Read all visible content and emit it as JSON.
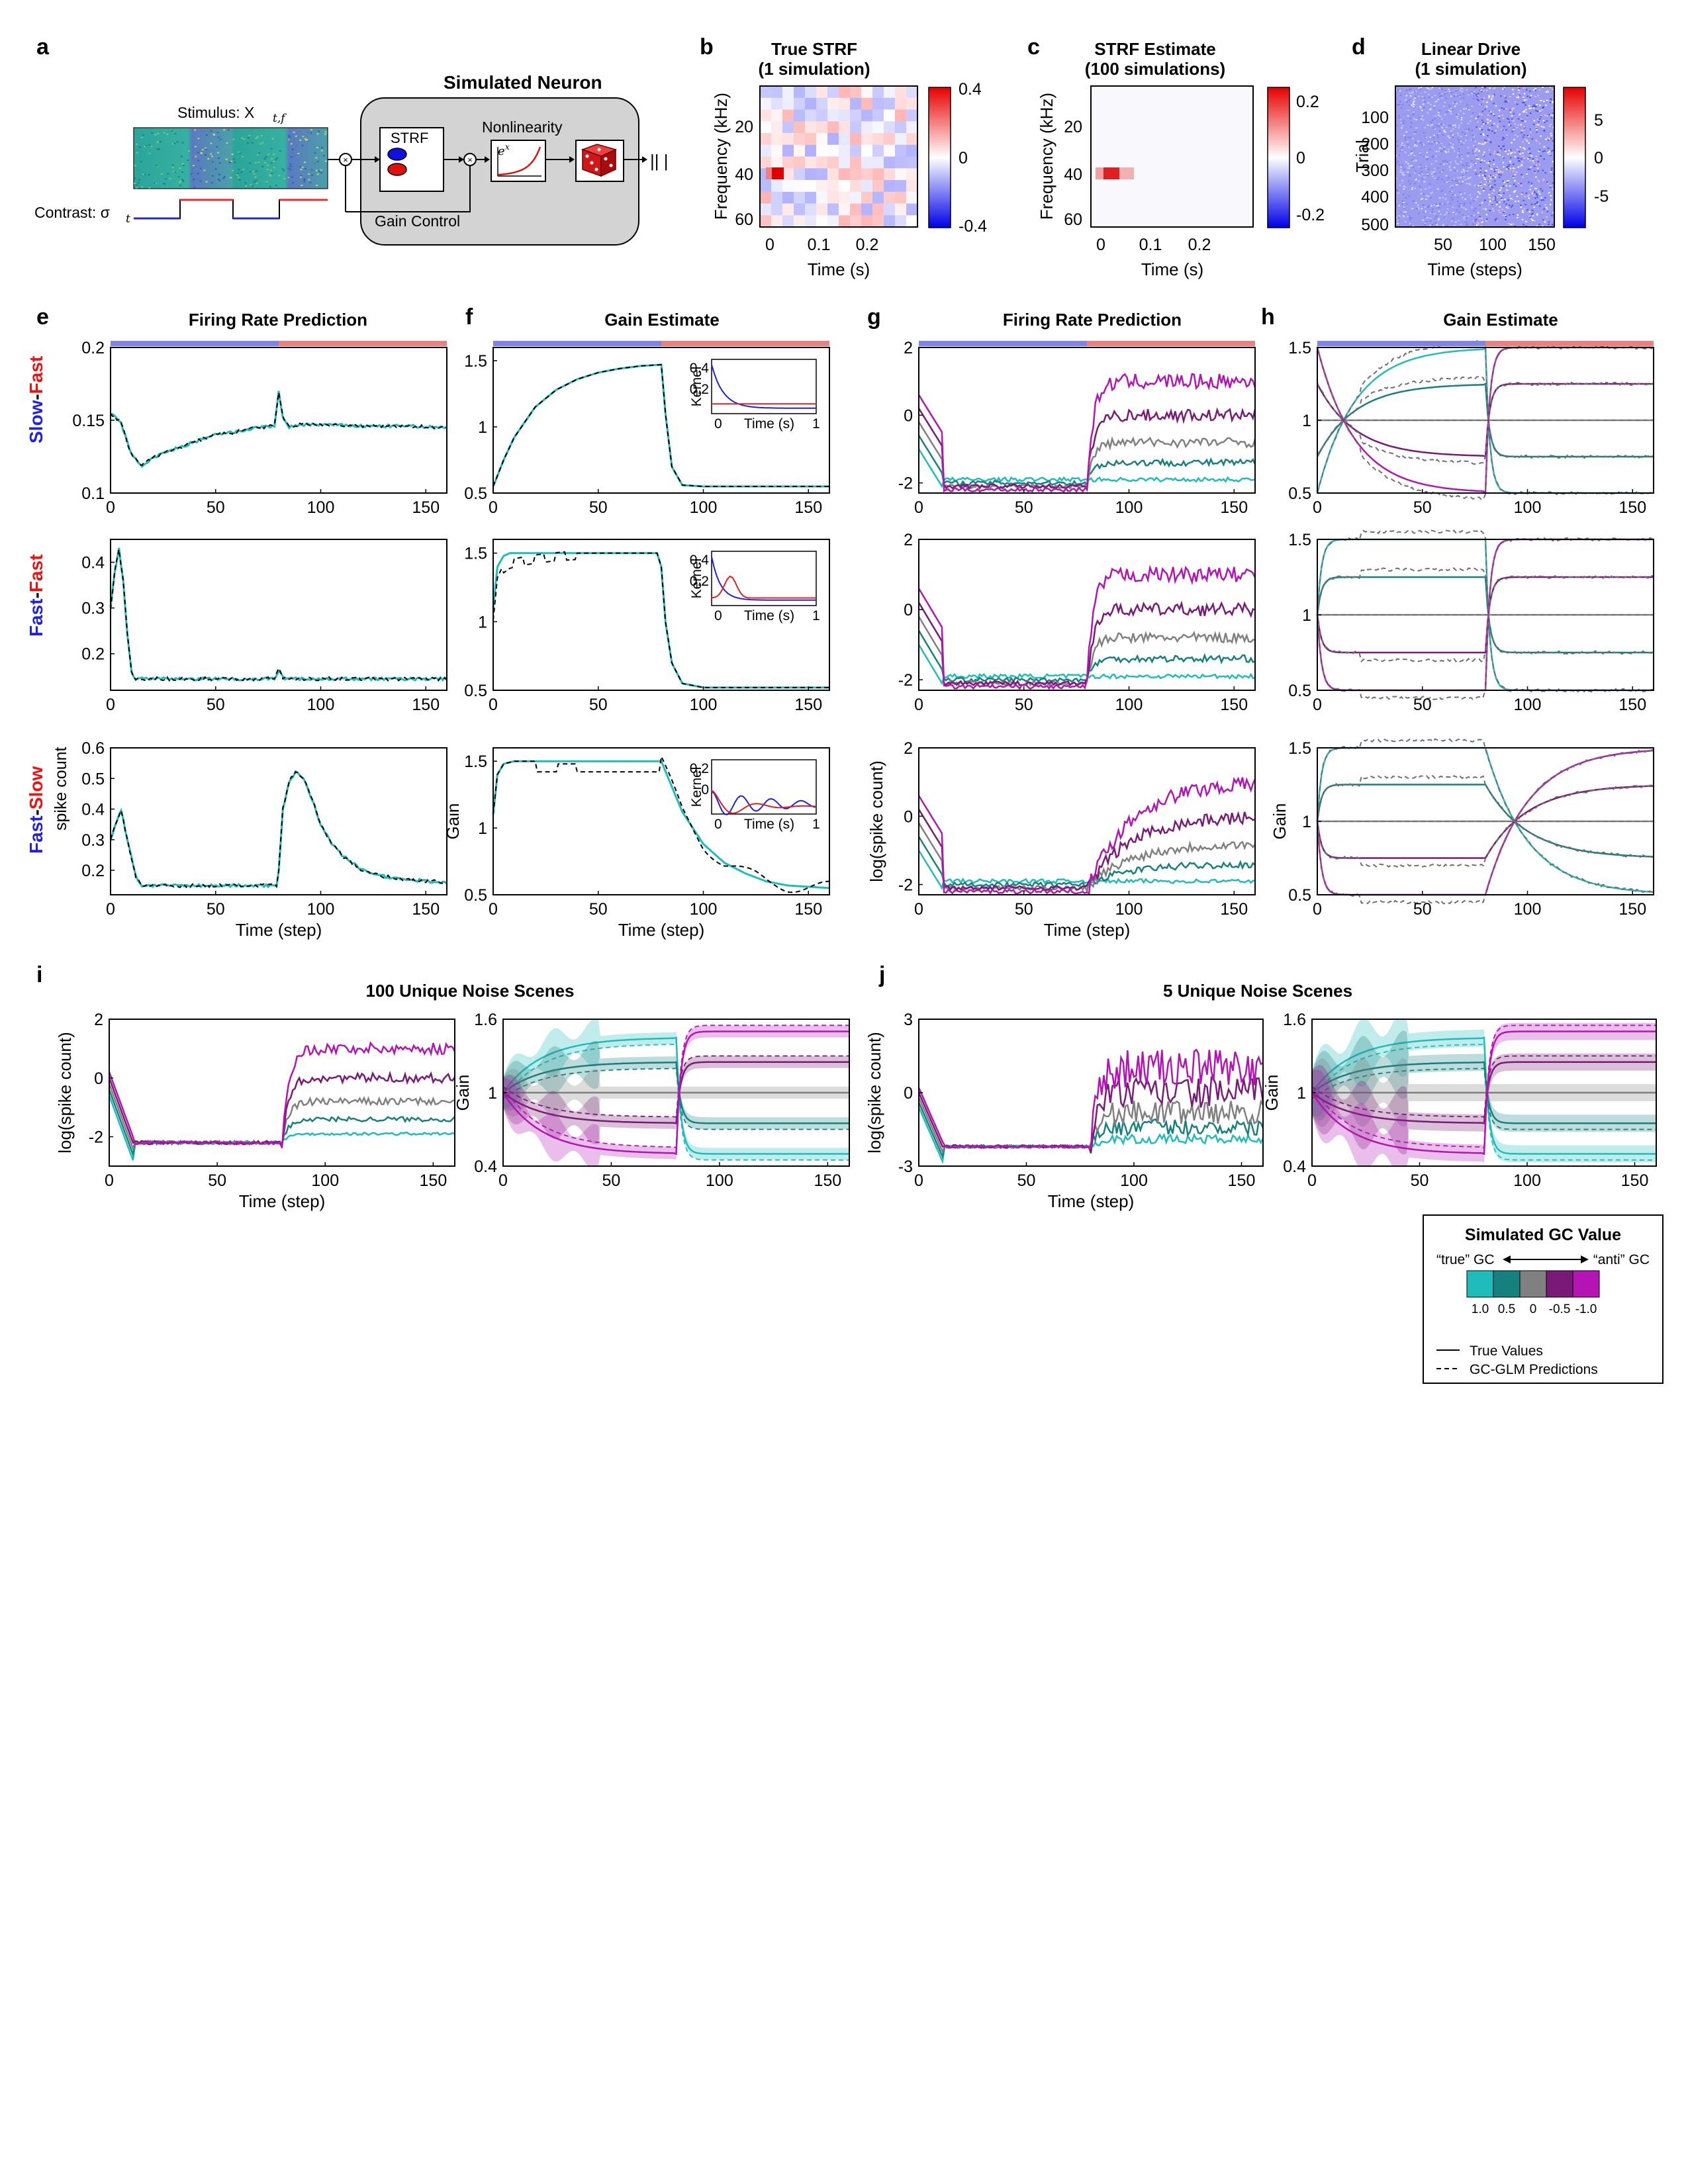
{
  "panels": {
    "a": {
      "label": "a",
      "neuron_title": "Simulated Neuron",
      "stimulus_label": "Stimulus: X",
      "stimulus_sub": "t,f",
      "contrast_label": "Contrast: σ",
      "contrast_sub": "t",
      "strf_label": "STRF",
      "nonlinearity_label": "Nonlinearity",
      "nonlinearity_formula": "e",
      "nonlinearity_sup": "x",
      "gain_control_label": "Gain Control",
      "spikes_label": "|| |"
    },
    "b": {
      "label": "b",
      "title1": "True STRF",
      "title2": "(1 simulation)",
      "ylabel": "Frequency (kHz)",
      "xlabel": "Time (s)",
      "yticks": [
        "20",
        "40",
        "60"
      ],
      "xticks": [
        "0",
        "0.1",
        "0.2"
      ],
      "cbar_ticks": [
        "0.4",
        "0",
        "-0.4"
      ]
    },
    "c": {
      "label": "c",
      "title1": "STRF Estimate",
      "title2": "(100 simulations)",
      "ylabel": "Frequency (kHz)",
      "xlabel": "Time (s)",
      "yticks": [
        "20",
        "40",
        "60"
      ],
      "xticks": [
        "0",
        "0.1",
        "0.2"
      ],
      "cbar_ticks": [
        "0.2",
        "0",
        "-0.2"
      ]
    },
    "d": {
      "label": "d",
      "title1": "Linear Drive",
      "title2": "(1 simulation)",
      "ylabel": "Trial",
      "xlabel": "Time (steps)",
      "yticks": [
        "100",
        "200",
        "300",
        "400",
        "500"
      ],
      "xticks": [
        "50",
        "100",
        "150"
      ],
      "cbar_ticks": [
        "5",
        "0",
        "-5"
      ]
    },
    "e": {
      "label": "e",
      "title": "Firing Rate Prediction",
      "ylabel": "spike count",
      "xlabel": "Time (step)",
      "rows": [
        {
          "yticks": [
            "0.2",
            "0.15",
            "0.1"
          ],
          "xticks": [
            "0",
            "50",
            "100",
            "150"
          ]
        },
        {
          "yticks": [
            "0.4",
            "0.3",
            "0.2"
          ],
          "xticks": [
            "0",
            "50",
            "100",
            "150"
          ]
        },
        {
          "yticks": [
            "0.6",
            "0.5",
            "0.4",
            "0.3",
            "0.2"
          ],
          "xticks": [
            "0",
            "50",
            "100",
            "150"
          ]
        }
      ]
    },
    "f": {
      "label": "f",
      "title": "Gain Estimate",
      "ylabel": "Gain",
      "xlabel": "Time (step)",
      "inset_ylabel": "Kernel",
      "inset_xlabel": "Time (s)",
      "yticks": [
        "1.5",
        "1",
        "0.5"
      ],
      "xticks": [
        "0",
        "50",
        "100",
        "150"
      ],
      "inset_yticks": [
        [
          "0.4",
          "0.2"
        ],
        [
          "0.4",
          "0.2"
        ],
        [
          "0.2",
          "0"
        ]
      ],
      "inset_xticks": [
        "0",
        "1"
      ]
    },
    "g": {
      "label": "g",
      "title": "Firing Rate Prediction",
      "ylabel": "log(spike count)",
      "xlabel": "Time (step)",
      "yticks": [
        "2",
        "0",
        "-2"
      ],
      "xticks": [
        "0",
        "50",
        "100",
        "150"
      ]
    },
    "h": {
      "label": "h",
      "title": "Gain Estimate",
      "ylabel": "Gain",
      "yticks": [
        "1.5",
        "1",
        "0.5"
      ],
      "xticks": [
        "0",
        "50",
        "100",
        "150"
      ]
    },
    "i": {
      "label": "i",
      "title": "100 Unique Noise Scenes",
      "ylabel": "log(spike count)",
      "xlabel": "Time (step)",
      "gain_ylabel": "Gain",
      "yticks": [
        "2",
        "0",
        "-2"
      ],
      "gain_yticks": [
        "1.6",
        "1",
        "0.4"
      ],
      "xticks": [
        "0",
        "50",
        "100",
        "150"
      ]
    },
    "j": {
      "label": "j",
      "title": "5 Unique Noise Scenes",
      "ylabel": "log(spike count)",
      "xlabel": "Time (step)",
      "gain_ylabel": "Gain",
      "yticks": [
        "3",
        "0",
        "-3"
      ],
      "gain_yticks": [
        "1.6",
        "1",
        "0.4"
      ],
      "xticks": [
        "0",
        "50",
        "100",
        "150"
      ]
    }
  },
  "row_labels": [
    {
      "first": "Slow",
      "sep": "-",
      "second": "Fast"
    },
    {
      "first": "Fast",
      "sep": "-",
      "second": "Fast"
    },
    {
      "first": "Fast",
      "sep": "-",
      "second": "Slow"
    }
  ],
  "legend": {
    "title": "Simulated GC Value",
    "true_label": "“true” GC",
    "anti_label": "“anti” GC",
    "values": [
      "1.0",
      "0.5",
      "0",
      "-0.5",
      "-1.0"
    ],
    "swatch_colors": [
      "#1fbcbc",
      "#16807f",
      "#808080",
      "#7a1a78",
      "#b414b4"
    ],
    "solid_label": "True Values",
    "dashed_label": "GC-GLM Predictions"
  },
  "colors": {
    "low_contrast_bar": "#8080ee",
    "high_contrast_bar": "#ee7f7f",
    "slow_fast_blue": "#2222dd",
    "fast_red": "#ee1111"
  },
  "chart_data": [
    {
      "panel": "e",
      "row": "Slow-Fast",
      "type": "line",
      "xlim": [
        0,
        160
      ],
      "ylim": [
        0.1,
        0.2
      ],
      "series": [
        {
          "x": [
            0,
            5,
            10,
            15,
            20,
            30,
            40,
            50,
            60,
            70,
            78,
            80,
            82,
            85,
            90,
            100,
            120,
            140,
            160
          ],
          "y": [
            0.155,
            0.148,
            0.126,
            0.119,
            0.124,
            0.13,
            0.135,
            0.14,
            0.142,
            0.145,
            0.146,
            0.17,
            0.152,
            0.145,
            0.147,
            0.147,
            0.146,
            0.146,
            0.145
          ]
        }
      ]
    },
    {
      "panel": "e",
      "row": "Fast-Fast",
      "type": "line",
      "xlim": [
        0,
        160
      ],
      "ylim": [
        0.12,
        0.45
      ],
      "series": [
        {
          "x": [
            0,
            2,
            4,
            6,
            8,
            10,
            12,
            20,
            40,
            60,
            78,
            80,
            82,
            84,
            100,
            120,
            140,
            160
          ],
          "y": [
            0.3,
            0.38,
            0.43,
            0.36,
            0.24,
            0.16,
            0.145,
            0.145,
            0.145,
            0.145,
            0.145,
            0.165,
            0.148,
            0.145,
            0.145,
            0.145,
            0.145,
            0.145
          ]
        }
      ]
    },
    {
      "panel": "e",
      "row": "Fast-Slow",
      "type": "line",
      "xlim": [
        0,
        160
      ],
      "ylim": [
        0.12,
        0.6
      ],
      "series": [
        {
          "x": [
            0,
            2,
            5,
            8,
            12,
            15,
            30,
            50,
            70,
            79,
            80,
            82,
            85,
            88,
            92,
            96,
            100,
            105,
            110,
            120,
            130,
            140,
            150,
            160
          ],
          "y": [
            0.3,
            0.34,
            0.4,
            0.3,
            0.18,
            0.15,
            0.15,
            0.15,
            0.15,
            0.15,
            0.2,
            0.4,
            0.49,
            0.52,
            0.5,
            0.43,
            0.35,
            0.29,
            0.25,
            0.2,
            0.18,
            0.17,
            0.165,
            0.16
          ]
        }
      ]
    },
    {
      "panel": "f",
      "row": "Slow-Fast",
      "type": "line",
      "xlim": [
        0,
        160
      ],
      "ylim": [
        0.5,
        1.6
      ],
      "series": [
        {
          "x": [
            0,
            5,
            10,
            20,
            30,
            40,
            50,
            60,
            70,
            80,
            82,
            85,
            90,
            100,
            120,
            140,
            160
          ],
          "y": [
            0.55,
            0.75,
            0.92,
            1.15,
            1.28,
            1.36,
            1.41,
            1.44,
            1.46,
            1.47,
            1.1,
            0.7,
            0.56,
            0.55,
            0.55,
            0.55,
            0.55
          ]
        }
      ]
    },
    {
      "panel": "f",
      "row": "Fast-Fast",
      "type": "line",
      "xlim": [
        0,
        160
      ],
      "ylim": [
        0.5,
        1.6
      ],
      "series": [
        {
          "x": [
            0,
            2,
            5,
            8,
            20,
            40,
            60,
            78,
            80,
            82,
            85,
            90,
            100,
            120,
            140,
            160
          ],
          "y": [
            1.1,
            1.4,
            1.48,
            1.5,
            1.5,
            1.5,
            1.5,
            1.5,
            1.4,
            1.0,
            0.7,
            0.55,
            0.52,
            0.52,
            0.52,
            0.52
          ]
        }
      ]
    },
    {
      "panel": "f",
      "row": "Fast-Slow",
      "type": "line",
      "xlim": [
        0,
        160
      ],
      "ylim": [
        0.5,
        1.6
      ],
      "series": [
        {
          "x": [
            0,
            2,
            5,
            10,
            20,
            40,
            60,
            80,
            90,
            100,
            110,
            120,
            130,
            140,
            150,
            160
          ],
          "y": [
            1.1,
            1.4,
            1.48,
            1.5,
            1.5,
            1.5,
            1.5,
            1.5,
            1.12,
            0.88,
            0.74,
            0.66,
            0.6,
            0.57,
            0.56,
            0.55
          ]
        }
      ]
    },
    {
      "panel": "g",
      "type": "line",
      "xlim": [
        0,
        160
      ],
      "ylim": [
        -2.3,
        2
      ],
      "series": [
        {
          "name": "1.0",
          "y_first": -1.9,
          "y_second": -1.9
        },
        {
          "name": "0.5",
          "y_first": -2.0,
          "y_second": -1.4
        },
        {
          "name": "0",
          "y_first": -2.1,
          "y_second": -0.8
        },
        {
          "name": "-0.5",
          "y_first": -2.1,
          "y_second": 0.0
        },
        {
          "name": "-1.0",
          "y_first": -2.2,
          "y_second": 1.0
        }
      ]
    },
    {
      "panel": "h",
      "type": "line",
      "xlim": [
        0,
        160
      ],
      "ylim": [
        0.5,
        1.5
      ],
      "series": [
        {
          "name": "1.0",
          "first": 1.5,
          "second": 0.5
        },
        {
          "name": "0.5",
          "first": 1.25,
          "second": 0.75
        },
        {
          "name": "0",
          "first": 1.0,
          "second": 1.0
        },
        {
          "name": "-0.5",
          "first": 0.75,
          "second": 1.25
        },
        {
          "name": "-1.0",
          "first": 0.5,
          "second": 1.5
        }
      ]
    },
    {
      "panel": "i",
      "type": "line",
      "xlim": [
        0,
        160
      ],
      "ylim": [
        -3,
        2
      ],
      "series": [
        {
          "name": "1.0",
          "y_second": -1.9
        },
        {
          "name": "0.5",
          "y_second": -1.4
        },
        {
          "name": "0",
          "y_second": -0.8
        },
        {
          "name": "-0.5",
          "y_second": 0.0
        },
        {
          "name": "-1.0",
          "y_second": 1.0
        }
      ]
    },
    {
      "panel": "j",
      "type": "line",
      "xlim": [
        0,
        160
      ],
      "ylim": [
        -3,
        3
      ],
      "series": [
        {
          "name": "1.0",
          "y_second": -1.9
        },
        {
          "name": "0.5",
          "y_second": -1.4
        },
        {
          "name": "0",
          "y_second": -0.8
        },
        {
          "name": "-0.5",
          "y_second": 0.0
        },
        {
          "name": "-1.0",
          "y_second": 1.0
        }
      ]
    }
  ]
}
